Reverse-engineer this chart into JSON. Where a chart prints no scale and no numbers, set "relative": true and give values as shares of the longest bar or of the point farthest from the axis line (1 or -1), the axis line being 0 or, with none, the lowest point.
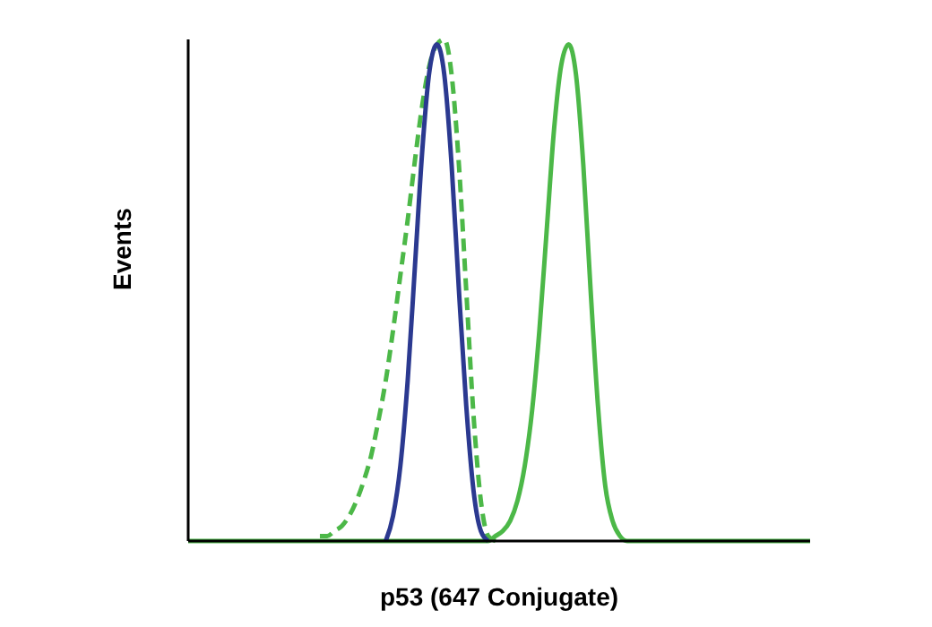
{
  "chart_data": {
    "type": "line",
    "relative": true,
    "xlabel": "p53 (647 Conjugate)",
    "ylabel": "Events",
    "marker": "none",
    "categories": [
      null,
      null,
      null,
      null,
      null,
      null,
      null,
      null,
      null,
      null,
      null,
      null,
      null,
      null,
      null,
      null,
      null,
      null,
      null,
      null,
      null,
      null,
      null,
      null,
      null,
      null,
      null,
      null,
      null,
      null,
      null,
      null,
      null,
      null,
      null,
      null,
      null,
      null,
      null,
      null,
      null,
      null,
      null,
      null,
      null,
      null,
      null,
      null,
      null,
      null,
      null,
      null,
      null,
      null,
      null,
      null,
      null,
      null,
      null,
      null,
      null,
      null,
      null,
      null,
      null,
      null,
      null,
      null,
      null,
      null,
      null,
      null,
      null,
      null,
      null,
      null,
      null,
      null,
      null,
      null,
      null,
      null,
      null,
      null,
      null,
      null
    ],
    "series": [
      {
        "color": "#4cb848",
        "line_style": "solid",
        "values": [
          0,
          0,
          0,
          0,
          0,
          0,
          0,
          0,
          0,
          0,
          0,
          0,
          0,
          0,
          0,
          0,
          0,
          0,
          0,
          0,
          0,
          0,
          0,
          0,
          0,
          0,
          0,
          0,
          0,
          0,
          0,
          0,
          0,
          0,
          0,
          0,
          0,
          0,
          0,
          0,
          0,
          0,
          0.01,
          0.02,
          0.04,
          0.08,
          0.15,
          0.26,
          0.42,
          0.62,
          0.82,
          0.95,
          0.99,
          0.93,
          0.75,
          0.5,
          0.27,
          0.11,
          0.04,
          0.01,
          0,
          0,
          0,
          0,
          0,
          0,
          0,
          0,
          0,
          0,
          0,
          0,
          0,
          0,
          0,
          0,
          0,
          0,
          0,
          0,
          0,
          0,
          0,
          0,
          0,
          0
        ]
      },
      {
        "color": "#4cb848",
        "line_style": "dashed",
        "values": [
          null,
          null,
          null,
          null,
          null,
          null,
          null,
          null,
          null,
          null,
          null,
          null,
          null,
          null,
          null,
          null,
          null,
          null,
          0.01,
          0.01,
          0.02,
          0.03,
          0.05,
          0.08,
          0.12,
          0.17,
          0.24,
          0.32,
          0.42,
          0.53,
          0.64,
          0.76,
          0.87,
          0.95,
          0.99,
          1,
          0.93,
          0.75,
          0.5,
          0.25,
          0.08,
          0.01,
          0,
          null,
          null,
          null,
          null,
          null,
          null,
          null,
          null,
          null,
          null,
          null,
          null,
          null,
          null,
          null,
          null,
          null,
          null,
          null,
          null,
          null,
          null,
          null,
          null,
          null,
          null,
          null,
          null,
          null,
          null,
          null,
          null,
          null,
          null,
          null,
          null,
          null,
          null,
          null,
          null,
          null,
          null,
          null
        ]
      },
      {
        "color": "#2b3990",
        "line_style": "solid",
        "values": [
          null,
          null,
          null,
          null,
          null,
          null,
          null,
          null,
          null,
          null,
          null,
          null,
          null,
          null,
          null,
          null,
          null,
          null,
          null,
          null,
          null,
          null,
          null,
          null,
          null,
          null,
          null,
          0,
          0.05,
          0.15,
          0.32,
          0.55,
          0.78,
          0.94,
          0.99,
          0.93,
          0.75,
          0.5,
          0.27,
          0.1,
          0.02,
          0,
          null,
          null,
          null,
          null,
          null,
          null,
          null,
          null,
          null,
          null,
          null,
          null,
          null,
          null,
          null,
          null,
          null,
          null,
          null,
          null,
          null,
          null,
          null,
          null,
          null,
          null,
          null,
          null,
          null,
          null,
          null,
          null,
          null,
          null,
          null,
          null,
          null,
          null,
          null,
          null,
          null,
          null,
          null,
          null
        ]
      }
    ]
  }
}
